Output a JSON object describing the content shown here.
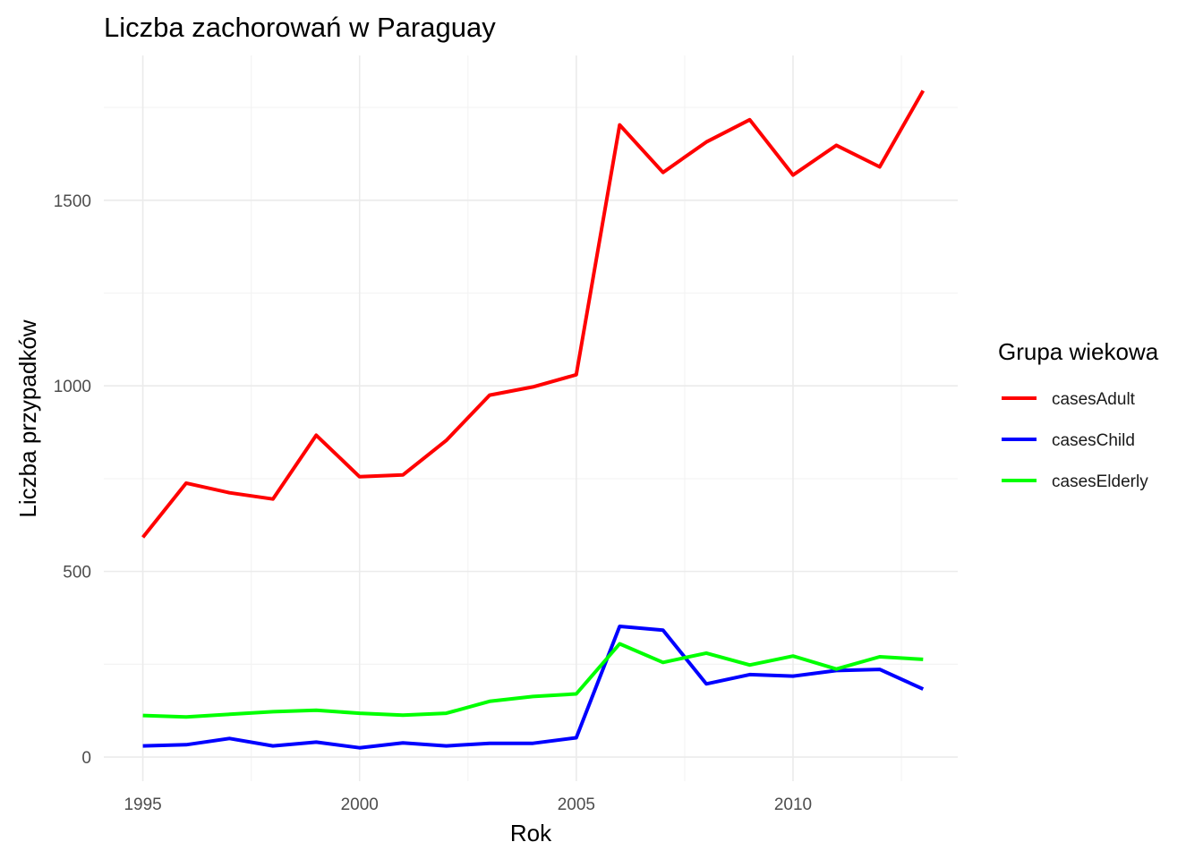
{
  "chart_data": {
    "type": "line",
    "title": "Liczba zachorowań w Paraguay",
    "xlabel": "Rok",
    "ylabel": "Liczba przypadków",
    "x": [
      1995,
      1996,
      1997,
      1998,
      1999,
      2000,
      2001,
      2002,
      2003,
      2004,
      2005,
      2006,
      2007,
      2008,
      2009,
      2010,
      2011,
      2012,
      2013
    ],
    "xlim": [
      1994.1,
      2013.8
    ],
    "ylim": [
      -65,
      1890
    ],
    "x_ticks": [
      1995,
      2000,
      2005,
      2010
    ],
    "y_ticks": [
      0,
      500,
      1000,
      1500
    ],
    "x_tick_labels": [
      "1995",
      "2000",
      "2005",
      "2010"
    ],
    "y_tick_labels": [
      "0",
      "500",
      "1000",
      "1500"
    ],
    "grid": true,
    "legend": {
      "title": "Grupa wiekowa",
      "position": "right"
    },
    "series": [
      {
        "name": "casesAdult",
        "color": "#ff0000",
        "values": [
          592,
          738,
          712,
          695,
          867,
          755,
          760,
          853,
          975,
          997,
          1030,
          1703,
          1575,
          1657,
          1717,
          1568,
          1648,
          1590,
          1795
        ]
      },
      {
        "name": "casesChild",
        "color": "#0000ff",
        "values": [
          30,
          33,
          50,
          30,
          40,
          25,
          38,
          30,
          37,
          37,
          52,
          352,
          342,
          197,
          222,
          218,
          233,
          236,
          183
        ]
      },
      {
        "name": "casesElderly",
        "color": "#00ff00",
        "values": [
          112,
          108,
          115,
          122,
          126,
          118,
          113,
          118,
          150,
          163,
          170,
          305,
          255,
          280,
          248,
          272,
          237,
          270,
          263
        ]
      }
    ]
  }
}
